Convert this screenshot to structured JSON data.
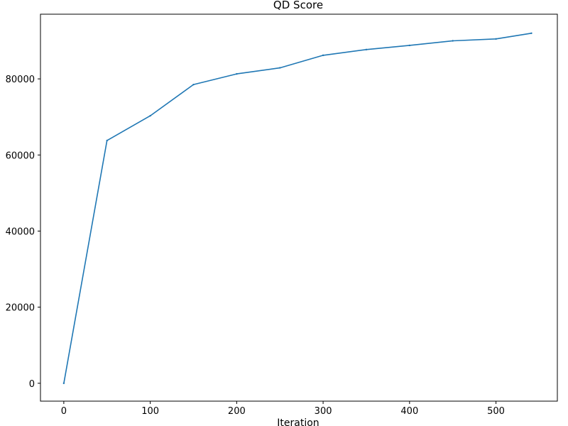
{
  "chart_data": {
    "type": "line",
    "title": "QD Score",
    "xlabel": "Iteration",
    "ylabel": "",
    "xlim": [
      -27,
      571
    ],
    "ylim": [
      -4700,
      97000
    ],
    "xticks": [
      0,
      100,
      200,
      300,
      400,
      500
    ],
    "yticks": [
      0,
      20000,
      40000,
      60000,
      80000
    ],
    "grid": false,
    "series": [
      {
        "color": "#1f77b4",
        "x": [
          0,
          50,
          100,
          150,
          200,
          250,
          300,
          350,
          400,
          450,
          500,
          541
        ],
        "y": [
          0,
          63800,
          70300,
          78500,
          81300,
          82900,
          86200,
          87700,
          88800,
          90000,
          90500,
          92000
        ]
      }
    ]
  }
}
